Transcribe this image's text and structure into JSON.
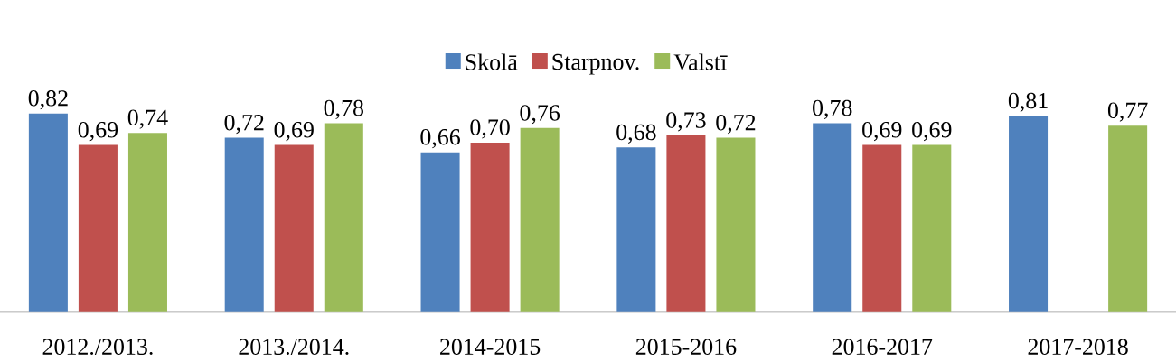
{
  "chart_data": {
    "type": "bar",
    "categories": [
      "2012./2013.",
      "2013./2014.",
      "2014-2015",
      "2015-2016",
      "2016-2017",
      "2017-2018"
    ],
    "series": [
      {
        "name": "Skolā",
        "color": "#4f81bd",
        "values": [
          0.82,
          0.72,
          0.66,
          0.68,
          0.78,
          0.81
        ],
        "value_labels": [
          "0,82",
          "0,72",
          "0,66",
          "0,68",
          "0,78",
          "0,81"
        ]
      },
      {
        "name": "Starpnov.",
        "color": "#c0504d",
        "values": [
          0.69,
          0.69,
          0.7,
          0.73,
          0.69,
          null
        ],
        "value_labels": [
          "0,69",
          "0,69",
          "0,70",
          "0,73",
          "0,69",
          null
        ]
      },
      {
        "name": "Valstī",
        "color": "#9bbb59",
        "values": [
          0.74,
          0.78,
          0.76,
          0.72,
          0.69,
          0.77
        ],
        "value_labels": [
          "0,74",
          "0,78",
          "0,76",
          "0,72",
          "0,69",
          "0,77"
        ]
      }
    ],
    "tick_labels": "x",
    "legend": "top"
  }
}
